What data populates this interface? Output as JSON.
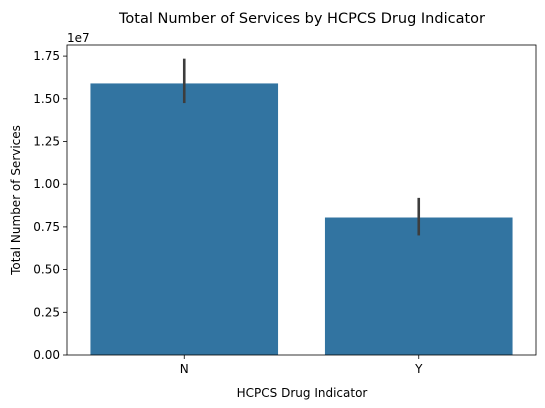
{
  "chart_data": {
    "type": "bar",
    "title": "Total Number of Services by HCPCS Drug Indicator",
    "xlabel": "HCPCS Drug Indicator",
    "ylabel": "Total Number of Services",
    "y_offset_label": "1e7",
    "categories": [
      "N",
      "Y"
    ],
    "values": [
      15900000,
      8050000
    ],
    "error_bars": [
      {
        "low": 14750000,
        "high": 17350000
      },
      {
        "low": 7000000,
        "high": 9200000
      }
    ],
    "ylim": [
      0,
      18150000
    ],
    "yticks": [
      0,
      2500000,
      5000000,
      7500000,
      10000000,
      12500000,
      15000000,
      17500000
    ],
    "ytick_labels": [
      "0.00",
      "0.25",
      "0.50",
      "0.75",
      "1.00",
      "1.25",
      "1.50",
      "1.75"
    ],
    "bar_color": "#3274a1",
    "errorbar_color": "#3d3d3d",
    "grid": false
  }
}
